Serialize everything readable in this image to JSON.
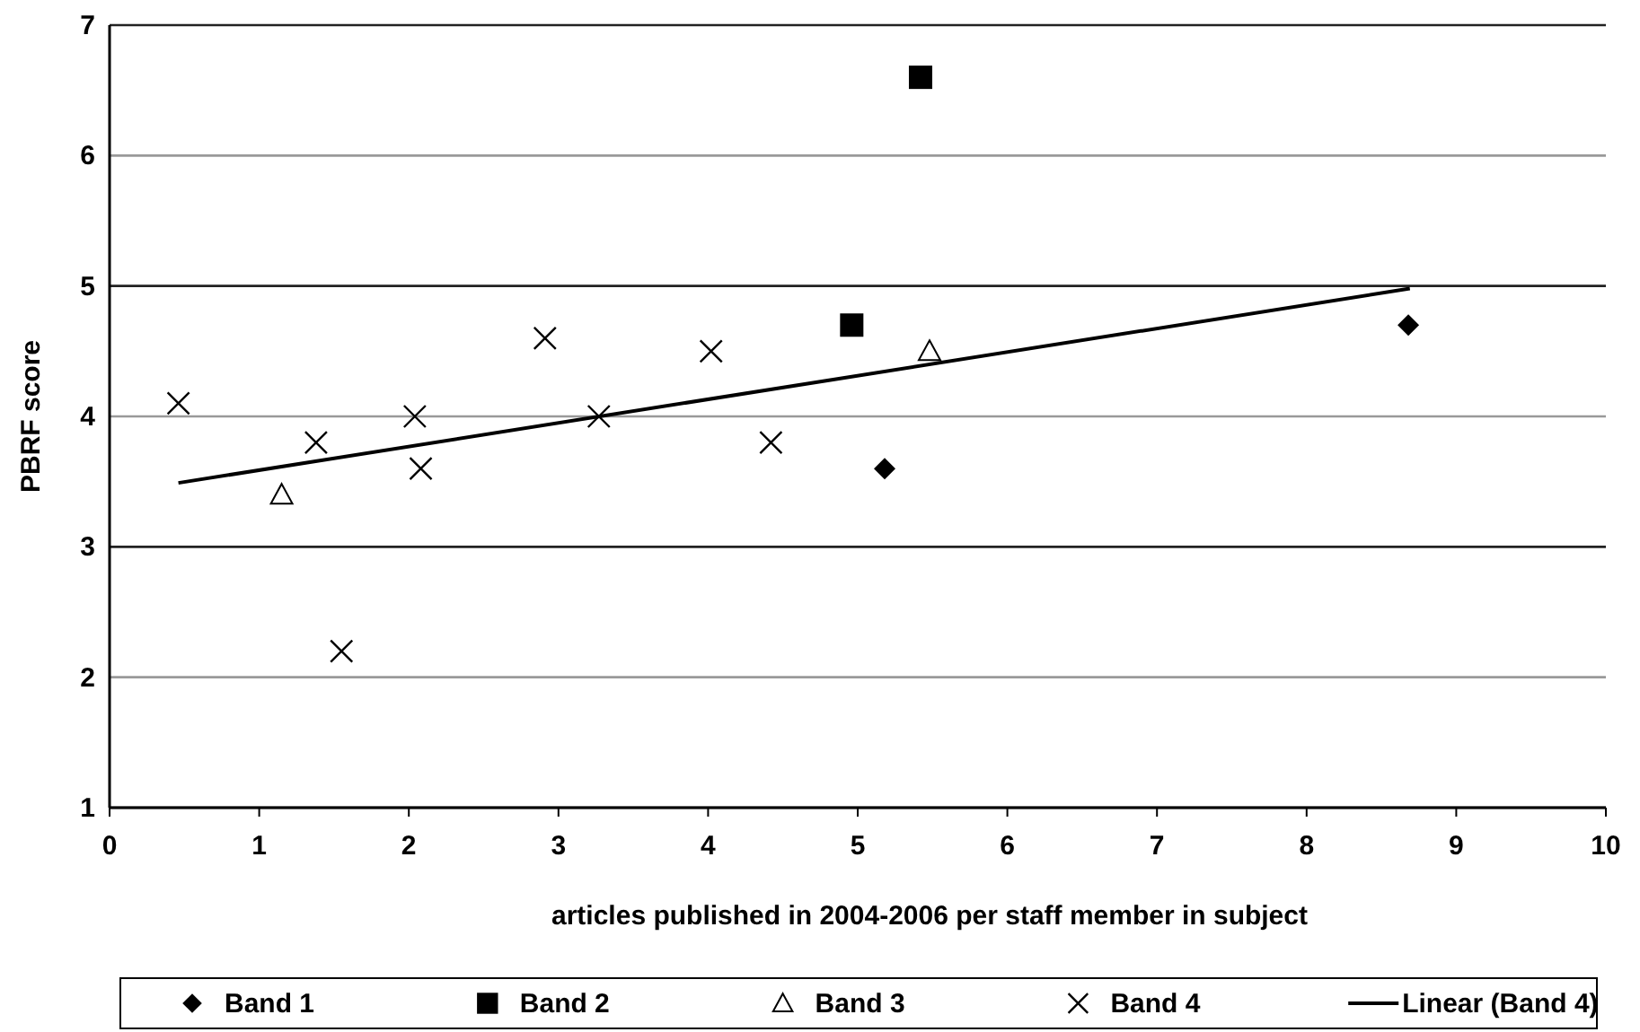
{
  "chart_data": {
    "type": "scatter",
    "xlabel": "articles published in 2004-2006 per staff member in subject",
    "ylabel": "PBRF score",
    "xlim": [
      0,
      10
    ],
    "ylim": [
      1,
      7
    ],
    "xticks": [
      0,
      1,
      2,
      3,
      4,
      5,
      6,
      7,
      8,
      9,
      10
    ],
    "yticks": [
      1,
      2,
      3,
      4,
      5,
      6,
      7
    ],
    "grid": "y",
    "legend": "bottom",
    "series": [
      {
        "name": "Band 1",
        "color": "#000000",
        "marker": "diamond",
        "x": [
          5.18,
          8.68
        ],
        "values": [
          3.6,
          4.7
        ]
      },
      {
        "name": "Band 2",
        "color": "#000000",
        "marker": "square",
        "x": [
          4.96,
          5.42
        ],
        "values": [
          4.7,
          6.6
        ]
      },
      {
        "name": "Band 3",
        "color": "#000000",
        "marker": "triangle",
        "x": [
          1.15,
          5.48
        ],
        "values": [
          3.4,
          4.5
        ]
      },
      {
        "name": "Band 4",
        "color": "#000000",
        "marker": "cross",
        "x": [
          0.46,
          1.38,
          1.55,
          2.04,
          2.08,
          2.91,
          3.27,
          4.02,
          4.42
        ],
        "values": [
          4.1,
          3.8,
          2.2,
          4.0,
          3.6,
          4.6,
          4.0,
          4.5,
          3.8
        ]
      },
      {
        "name": "Linear (Band 4)",
        "type": "line",
        "color": "#000000",
        "marker": "none",
        "line_style": "solid",
        "x": [
          0.46,
          8.69
        ],
        "values": [
          3.49,
          4.98
        ]
      }
    ]
  }
}
